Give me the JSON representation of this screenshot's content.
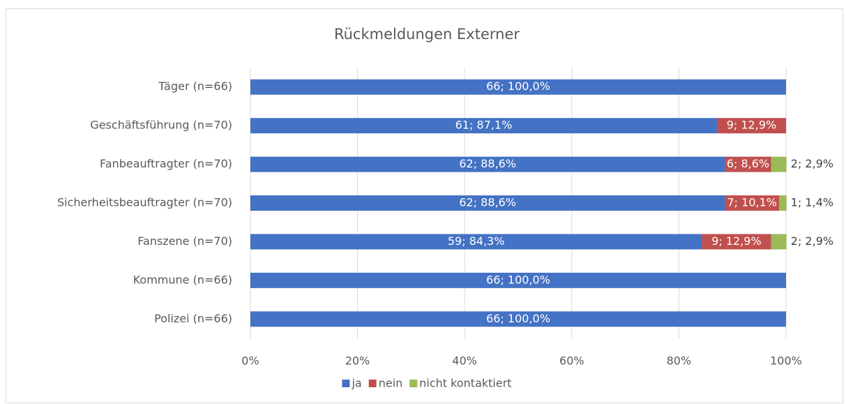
{
  "chart_data": {
    "type": "stacked_bar_horizontal",
    "title": "Rückmeldungen Externer",
    "categories": [
      "Täger (n=66)",
      "Geschäftsführung (n=70)",
      "Fanbeauftragter (n=70)",
      "Sicherheitsbeauftragter (n=70)",
      "Fanszene (n=70)",
      "Kommune (n=66)",
      "Polizei (n=66)"
    ],
    "series": [
      {
        "name": "ja",
        "color": "#4472c4",
        "values": [
          100,
          87.1,
          88.6,
          88.6,
          84.3,
          100,
          100
        ],
        "value_labels": [
          "66; 100,0%",
          "61; 87,1%",
          "62; 88,6%",
          "62; 88,6%",
          "59; 84,3%",
          "66; 100,0%",
          "66; 100,0%"
        ]
      },
      {
        "name": "nein",
        "color": "#c0504d",
        "values": [
          null,
          12.9,
          8.6,
          10.1,
          12.9,
          null,
          null
        ],
        "value_labels": [
          null,
          "9; 12,9%",
          "6; 8,6%",
          "7; 10,1%",
          "9; 12,9%",
          null,
          null
        ]
      },
      {
        "name": "nicht kontaktiert",
        "color": "#9bbb59",
        "values": [
          null,
          null,
          2.9,
          1.4,
          2.9,
          null,
          null
        ],
        "value_labels": [
          null,
          null,
          "2; 2,9%",
          "1; 1,4%",
          "2; 2,9%",
          null,
          null
        ]
      }
    ],
    "xlim": [
      0,
      100
    ],
    "xticks": [
      {
        "value": 0,
        "label": "0%"
      },
      {
        "value": 20,
        "label": "20%"
      },
      {
        "value": 40,
        "label": "40%"
      },
      {
        "value": 60,
        "label": "60%"
      },
      {
        "value": 80,
        "label": "80%"
      },
      {
        "value": 100,
        "label": "100%"
      }
    ],
    "grid": true,
    "legend": "bottom"
  }
}
